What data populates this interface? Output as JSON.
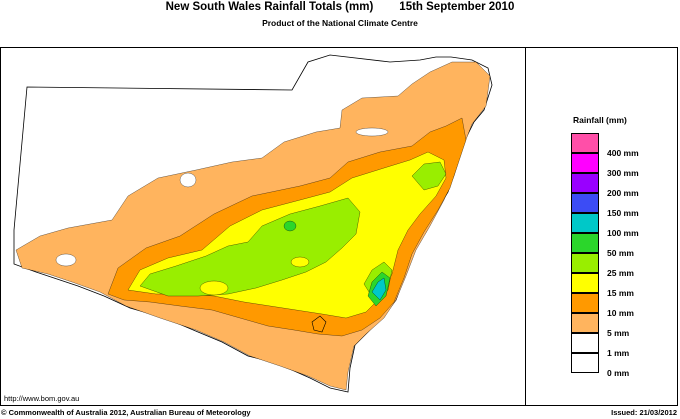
{
  "header": {
    "title": "New South Wales Rainfall Totals (mm)",
    "date": "15th September 2010",
    "subtitle": "Product of the National Climate Centre"
  },
  "legend": {
    "title": "Rainfall (mm)",
    "items": [
      {
        "label": "400 mm",
        "color": "#ff4fa8"
      },
      {
        "label": "300 mm",
        "color": "#ff00ff"
      },
      {
        "label": "200 mm",
        "color": "#9900ff"
      },
      {
        "label": "150 mm",
        "color": "#3c4cf5"
      },
      {
        "label": "100 mm",
        "color": "#00c8c8"
      },
      {
        "label": "50 mm",
        "color": "#2bd62b"
      },
      {
        "label": "25 mm",
        "color": "#99ee00"
      },
      {
        "label": "15 mm",
        "color": "#ffff00"
      },
      {
        "label": "10 mm",
        "color": "#ff9900"
      },
      {
        "label": "5 mm",
        "color": "#ffb45e"
      },
      {
        "label": "1 mm",
        "color": "#ffffff"
      },
      {
        "label": "0 mm",
        "color": "#ffffff"
      }
    ]
  },
  "colors": {
    "band_1_5": "#ffb45e",
    "band_5_10": "#ff9900",
    "band_10_15": "#ffff00",
    "band_15_25": "#99ee00",
    "band_25_50": "#2bd62b",
    "band_50_100": "#00c8c8"
  },
  "footer": {
    "url": "http://www.bom.gov.au",
    "copyright": "© Commonwealth of Australia 2012, Australian Bureau of Meteorology",
    "issued": "Issued: 21/03/2012"
  }
}
